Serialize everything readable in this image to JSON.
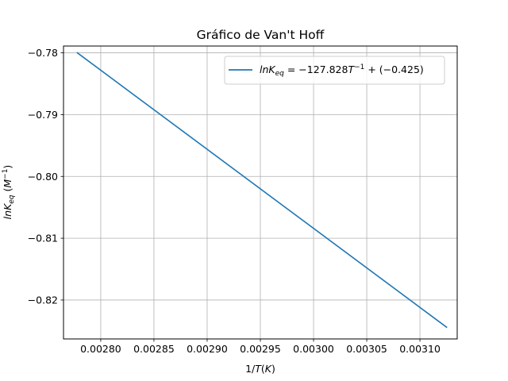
{
  "chart_data": {
    "type": "line",
    "title": "Gráfico de Van't Hoff",
    "xlabel": "1/T(K)",
    "ylabel": "lnK_eq (M^-1)",
    "xlim": [
      0.002765,
      0.003135
    ],
    "ylim": [
      -0.8263,
      -0.7789
    ],
    "xticks": [
      0.0028,
      0.00285,
      0.0029,
      0.00295,
      0.003,
      0.00305,
      0.0031
    ],
    "xtick_labels": [
      "0.00280",
      "0.00285",
      "0.00290",
      "0.00295",
      "0.00300",
      "0.00305",
      "0.00310"
    ],
    "yticks": [
      -0.78,
      -0.79,
      -0.8,
      -0.81,
      -0.82
    ],
    "ytick_labels": [
      "−0.78",
      "−0.79",
      "−0.80",
      "−0.81",
      "−0.82"
    ],
    "grid": true,
    "legend_position": "top-right",
    "series": [
      {
        "name": "lnK_eq = −127.828T^−1 + (−0.425)",
        "color": "#1f77b4",
        "x": [
          0.002778,
          0.003125
        ],
        "y": [
          -0.78,
          -0.8244
        ]
      }
    ]
  }
}
